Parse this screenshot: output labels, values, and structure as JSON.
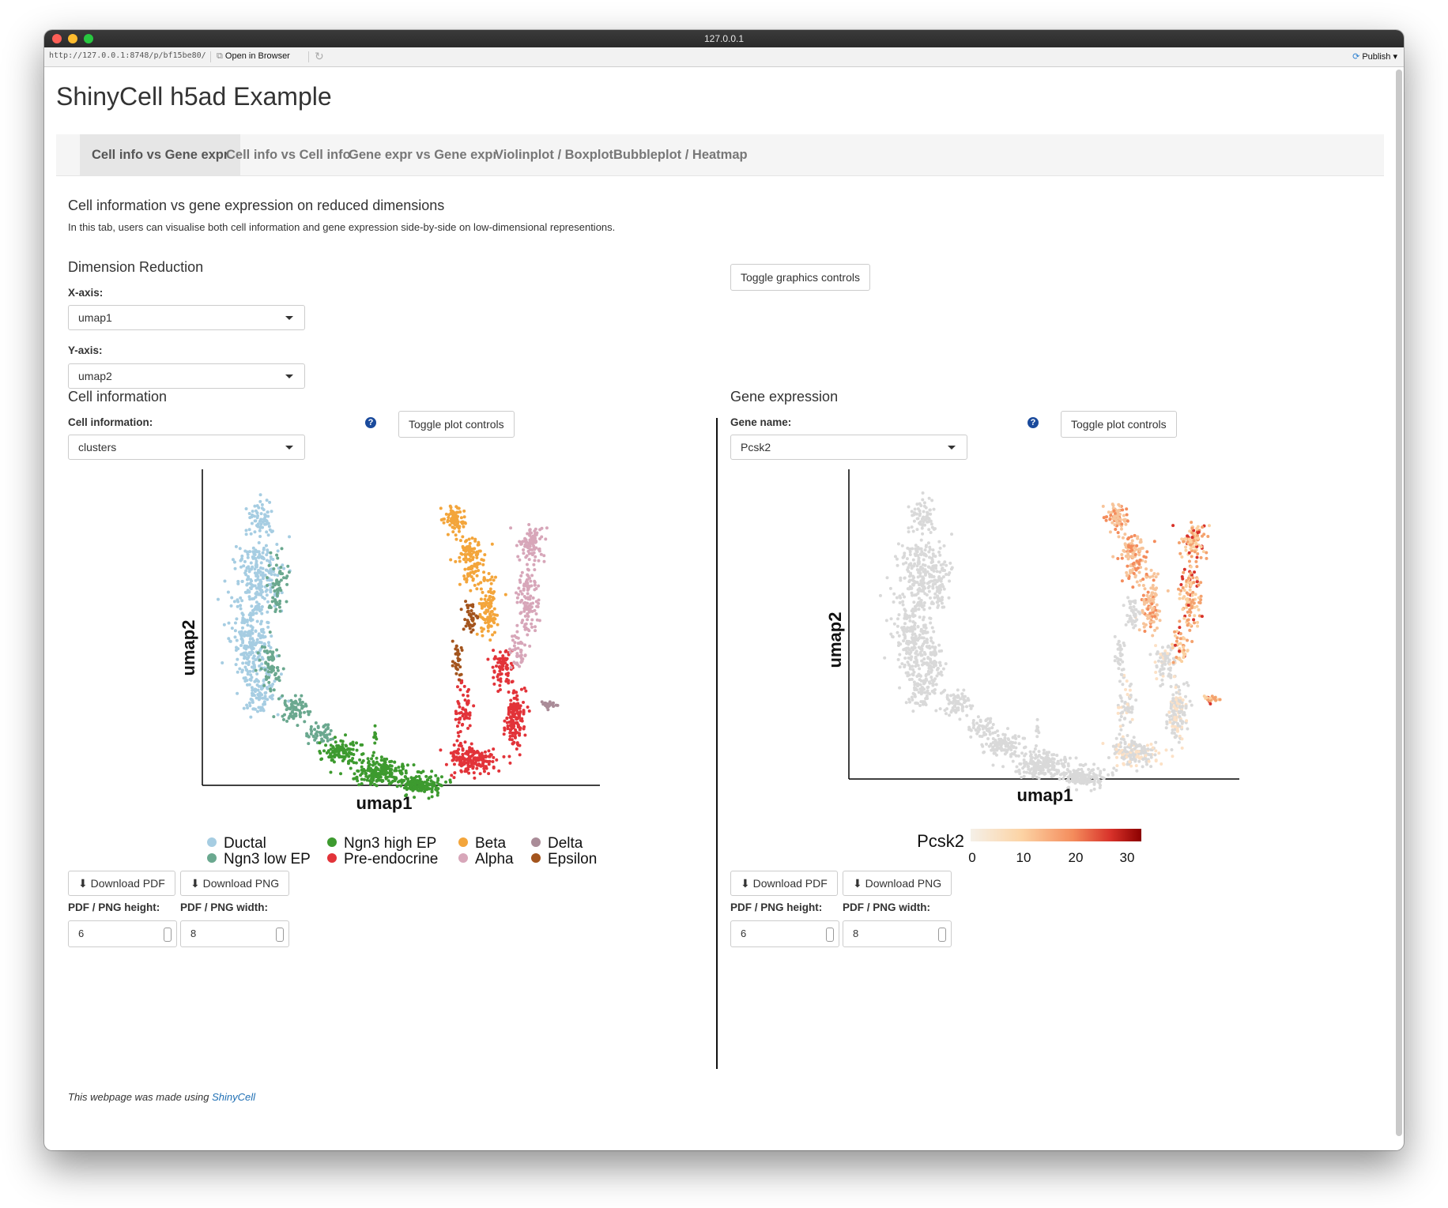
{
  "window": {
    "title": "127.0.0.1",
    "url": "http://127.0.0.1:8748/p/bf15be80/",
    "open_in_browser": "Open in Browser",
    "publish": "Publish"
  },
  "app_title": "ShinyCell h5ad Example",
  "tabs": [
    {
      "label": "Cell info vs Gene expr",
      "active": true
    },
    {
      "label": "Cell info vs Cell info"
    },
    {
      "label": "Gene expr vs Gene expr"
    },
    {
      "label": "Violinplot / Boxplot"
    },
    {
      "label": "Bubbleplot / Heatmap"
    }
  ],
  "section": {
    "title": "Cell information vs gene expression on reduced dimensions",
    "description": "In this tab, users can visualise both cell information and gene expression side-by-side on low-dimensional representions."
  },
  "dimred": {
    "title": "Dimension Reduction",
    "x_label": "X-axis:",
    "x_value": "umap1",
    "y_label": "Y-axis:",
    "y_value": "umap2",
    "toggle_graphics": "Toggle graphics controls"
  },
  "cellinfo": {
    "title": "Cell information",
    "select_label": "Cell information:",
    "select_value": "clusters",
    "toggle": "Toggle plot controls",
    "xlabel": "umap1",
    "ylabel": "umap2",
    "legend": [
      {
        "name": "Ductal",
        "color": "#a6cde2"
      },
      {
        "name": "Ngn3 low EP",
        "color": "#6aa88f"
      },
      {
        "name": "Ngn3 high EP",
        "color": "#3d9a2f"
      },
      {
        "name": "Pre-endocrine",
        "color": "#e23339"
      },
      {
        "name": "Beta",
        "color": "#f3a53b"
      },
      {
        "name": "Alpha",
        "color": "#d7a6b9"
      },
      {
        "name": "Delta",
        "color": "#aa8c98"
      },
      {
        "name": "Epsilon",
        "color": "#a3541d"
      }
    ],
    "download_pdf": "Download PDF",
    "download_png": "Download PNG",
    "height_label": "PDF / PNG height:",
    "height_value": "6",
    "width_label": "PDF / PNG width:",
    "width_value": "8"
  },
  "geneexpr": {
    "title": "Gene expression",
    "select_label": "Gene name:",
    "select_value": "Pcsk2",
    "toggle": "Toggle plot controls",
    "xlabel": "umap1",
    "ylabel": "umap2",
    "colorbar_title": "Pcsk2",
    "colorbar_ticks": [
      "0",
      "10",
      "20",
      "30"
    ],
    "colorbar_colors": [
      "#f5f0e8",
      "#fcd3a4",
      "#f48c5c",
      "#d8322a",
      "#8b0000"
    ],
    "download_pdf": "Download PDF",
    "download_png": "Download PNG",
    "height_label": "PDF / PNG height:",
    "height_value": "6",
    "width_label": "PDF / PNG width:",
    "width_value": "8"
  },
  "footer": {
    "text": "This webpage was made using",
    "link": "ShinyCell"
  }
}
